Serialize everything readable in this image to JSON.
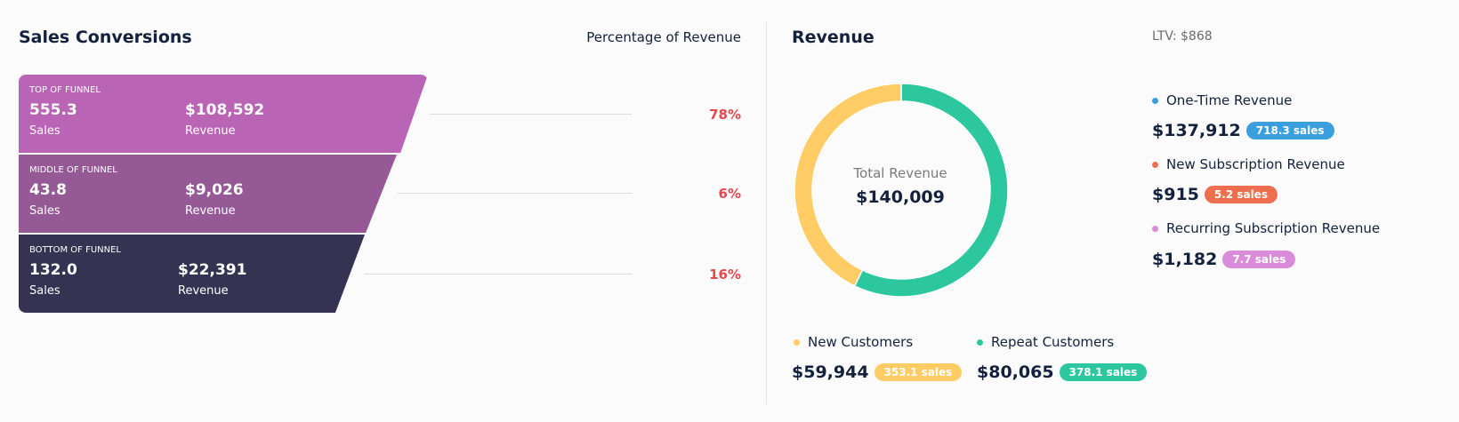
{
  "sales_conversions": {
    "title": "Sales Conversions",
    "column_header": "Percentage of Revenue",
    "stages": [
      {
        "label": "TOP OF FUNNEL",
        "sales": "555.3",
        "sales_label": "Sales",
        "revenue": "$108,592",
        "revenue_label": "Revenue",
        "percent": "78%",
        "color": "#b964b4"
      },
      {
        "label": "MIDDLE OF FUNNEL",
        "sales": "43.8",
        "sales_label": "Sales",
        "revenue": "$9,026",
        "revenue_label": "Revenue",
        "percent": "6%",
        "color": "#955996"
      },
      {
        "label": "BOTTOM OF FUNNEL",
        "sales": "132.0",
        "sales_label": "Sales",
        "revenue": "$22,391",
        "revenue_label": "Revenue",
        "percent": "16%",
        "color": "#363352"
      }
    ]
  },
  "revenue": {
    "title": "Revenue",
    "ltv": "LTV: $868",
    "total_label": "Total Revenue",
    "total_value": "$140,009",
    "donut": [
      {
        "name": "New Customers",
        "value": 59944,
        "color": "#ffcc66"
      },
      {
        "name": "Repeat Customers",
        "value": 80065,
        "color": "#2cc79e"
      }
    ],
    "customers": [
      {
        "label": "New Customers",
        "amount": "$59,944",
        "badge": "353.1 sales",
        "color": "#ffcc66"
      },
      {
        "label": "Repeat Customers",
        "amount": "$80,065",
        "badge": "378.1 sales",
        "color": "#2cc79e"
      }
    ],
    "types": [
      {
        "label": "One-Time Revenue",
        "amount": "$137,912",
        "badge": "718.3 sales",
        "color": "#3a9fdc"
      },
      {
        "label": "New Subscription Revenue",
        "amount": "$915",
        "badge": "5.2 sales",
        "color": "#ee6f4f"
      },
      {
        "label": "Recurring Subscription Revenue",
        "amount": "$1,182",
        "badge": "7.7 sales",
        "color": "#da8cda"
      }
    ]
  }
}
